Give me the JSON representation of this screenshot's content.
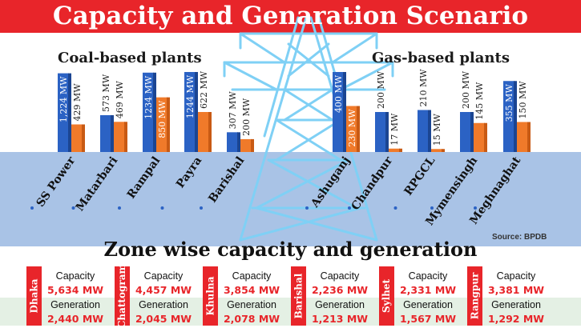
{
  "title": "Capacity and Genaration Scenario",
  "source": "Source: BPDB",
  "zone_title": "Zone wise capacity and generation",
  "colors": {
    "capacity": "#2b62c4",
    "generation": "#f07a2a",
    "accent": "#e8252a",
    "ground": "#a9c3e6"
  },
  "chart_data": [
    {
      "type": "bar",
      "title": "Coal-based plants",
      "categories": [
        "SS Power",
        "Matarbari",
        "Rampal",
        "Payra",
        "Barishal"
      ],
      "series": [
        {
          "values": [
            1224,
            573,
            1234,
            1244,
            307
          ],
          "labels": [
            "1,224 MW",
            "573 MW",
            "1234 MW",
            "1244 MW",
            "307 MW"
          ]
        },
        {
          "values": [
            429,
            469,
            850,
            622,
            200
          ],
          "labels": [
            "429 MW",
            "469 MW",
            "850 MW",
            "622 MW",
            "200 MW"
          ]
        }
      ]
    },
    {
      "type": "bar",
      "title": "Gas-based plants",
      "categories": [
        "Ashuganj",
        "Chandpur",
        "RPGCL",
        "Mymensingh",
        "Meghnaghat"
      ],
      "series": [
        {
          "values": [
            400,
            200,
            210,
            200,
            355
          ],
          "labels": [
            "400 MW",
            "200 MW",
            "210 MW",
            "200 MW",
            "355 MW"
          ]
        },
        {
          "values": [
            230,
            17,
            15,
            145,
            150
          ],
          "labels": [
            "230 MW",
            "17 MW",
            "15 MW",
            "145 MW",
            "150 MW"
          ]
        }
      ]
    }
  ],
  "zones": [
    {
      "name": "Dhaka",
      "capacity_label": "Capacity",
      "capacity": "5,634 MW",
      "generation_label": "Generation",
      "generation": "2,440 MW"
    },
    {
      "name": "Chattogram",
      "capacity_label": "Capacity",
      "capacity": "4,457 MW",
      "generation_label": "Generation",
      "generation": "2,045 MW"
    },
    {
      "name": "Khulna",
      "capacity_label": "Capacity",
      "capacity": "3,854 MW",
      "generation_label": "Generation",
      "generation": "2,078 MW"
    },
    {
      "name": "Barishal",
      "capacity_label": "Capacity",
      "capacity": "2,236 MW",
      "generation_label": "Generation",
      "generation": "1,213 MW"
    },
    {
      "name": "Sylhet",
      "capacity_label": "Capacity",
      "capacity": "2,331 MW",
      "generation_label": "Generation",
      "generation": "1,567 MW"
    },
    {
      "name": "Rangpur",
      "capacity_label": "Capacity",
      "capacity": "3,381 MW",
      "generation_label": "Generation",
      "generation": "1,292 MW"
    }
  ]
}
